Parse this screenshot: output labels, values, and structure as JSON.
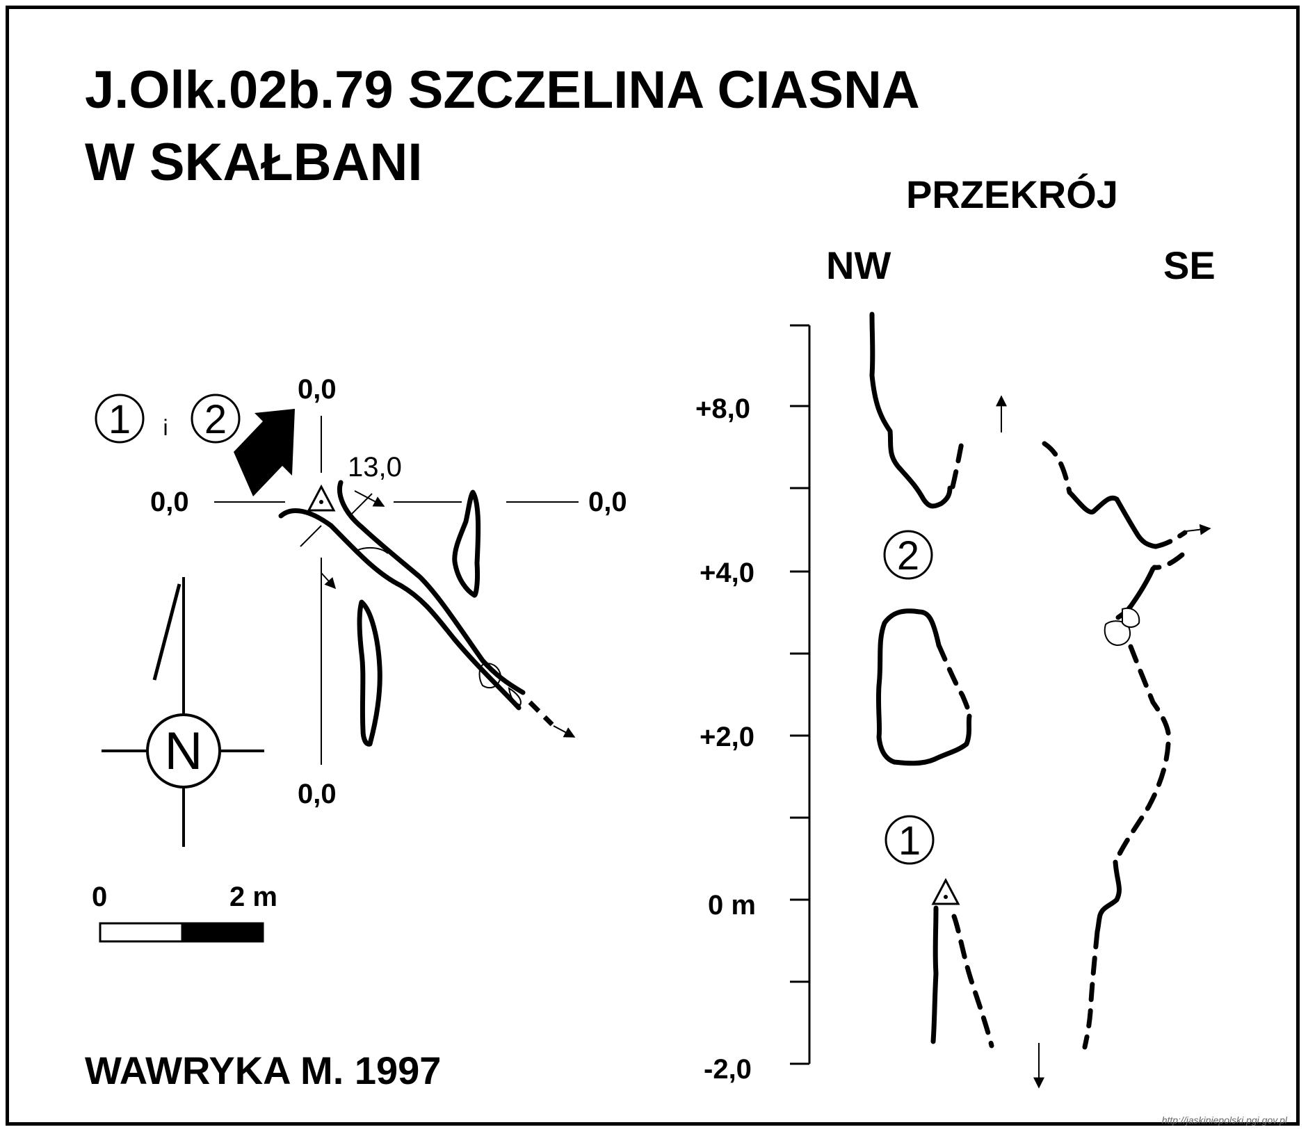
{
  "title": {
    "line1": "J.Olk.02b.79  SZCZELINA CIASNA",
    "line2": "W SKAŁBANI"
  },
  "plan": {
    "entrance_label_1": "1",
    "entrance_label_conj": "i",
    "entrance_label_2": "2",
    "axis_top": "0,0",
    "axis_left": "0,0",
    "axis_right": "0,0",
    "axis_bottom": "0,0",
    "section_length": "13,0",
    "north_label": "N",
    "scale_start": "0",
    "scale_end": "2 m"
  },
  "section": {
    "title": "PRZEKRÓJ",
    "left_direction": "NW",
    "right_direction": "SE",
    "height_labels": [
      "+8,0",
      "+4,0",
      "+2,0",
      "0 m",
      "-2,0"
    ],
    "level_label_1": "1",
    "level_label_2": "2"
  },
  "author": "WAWRYKA M. 1997",
  "source_url": "http://jaskiniepolski.pgi.gov.pl"
}
